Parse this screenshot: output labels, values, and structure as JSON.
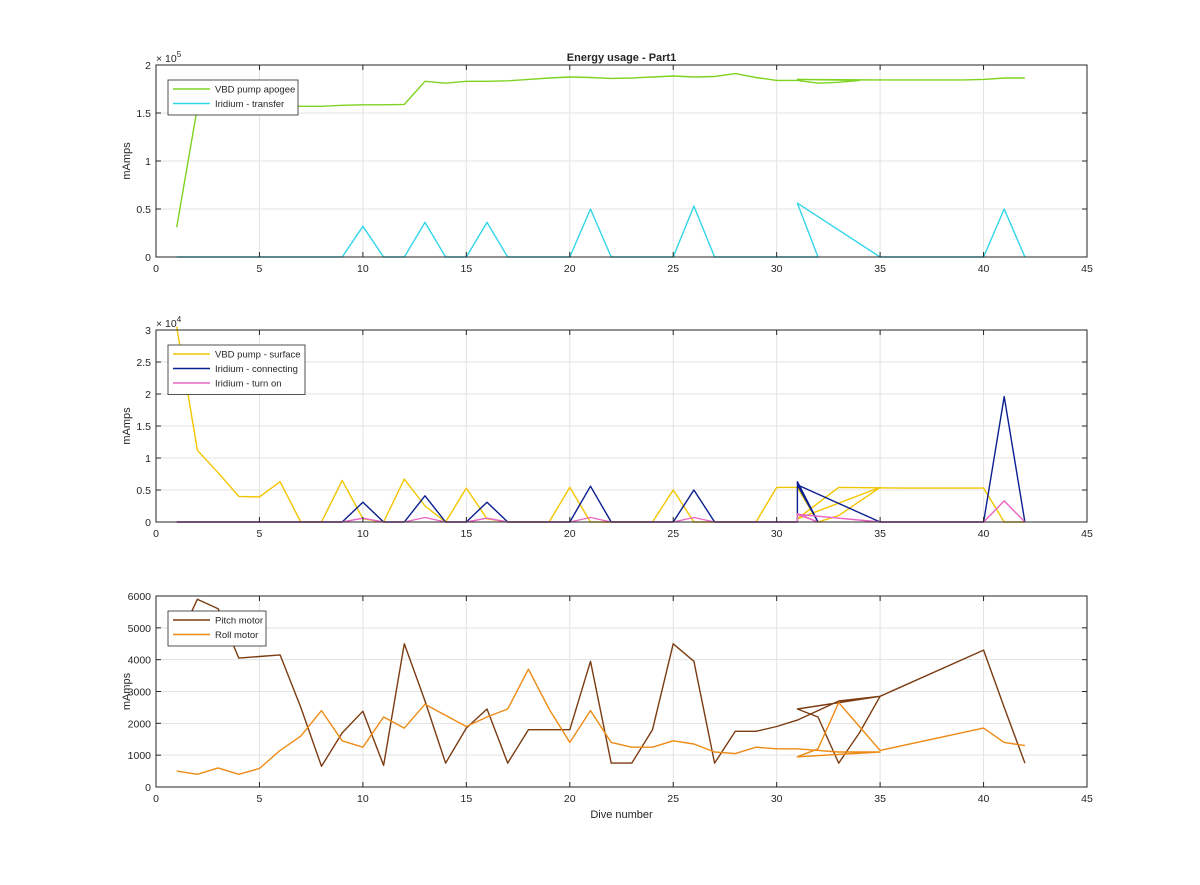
{
  "chart_data": [
    {
      "type": "line",
      "title": "Energy usage - Part1",
      "xlabel": "",
      "ylabel": "mAmps",
      "xlim": [
        0,
        45
      ],
      "ylim": [
        0,
        200000
      ],
      "x_ticks": [
        0,
        5,
        10,
        15,
        20,
        25,
        30,
        35,
        40,
        45
      ],
      "y_ticks": [
        0,
        50000,
        100000,
        150000,
        200000
      ],
      "y_tick_labels": [
        "0",
        "0.5",
        "1",
        "1.5",
        "2"
      ],
      "y_exponent_base": "× 10",
      "y_exponent_power": "5",
      "grid": true,
      "legend_position": "top-left",
      "series": [
        {
          "name": "VBD pump apogee",
          "color": "#7ed321",
          "points": [
            [
              1,
              31000
            ],
            [
              2,
              156000
            ],
            [
              3,
              157000
            ],
            [
              4,
              157000
            ],
            [
              5,
              157000
            ],
            [
              6,
              157000
            ],
            [
              7,
              157000
            ],
            [
              8,
              157000
            ],
            [
              9,
              158000
            ],
            [
              10,
              158500
            ],
            [
              11,
              158500
            ],
            [
              12,
              159000
            ],
            [
              13,
              183000
            ],
            [
              14,
              181000
            ],
            [
              15,
              183000
            ],
            [
              16,
              183000
            ],
            [
              17,
              183500
            ],
            [
              18,
              185000
            ],
            [
              19,
              186500
            ],
            [
              20,
              187500
            ],
            [
              21,
              187000
            ],
            [
              22,
              186000
            ],
            [
              23,
              186500
            ],
            [
              24,
              187500
            ],
            [
              25,
              188500
            ],
            [
              26,
              187500
            ],
            [
              27,
              188000
            ],
            [
              28,
              191000
            ],
            [
              29,
              187000
            ],
            [
              30,
              184000
            ],
            [
              31,
              184000
            ],
            [
              32,
              181000
            ],
            [
              33,
              182000
            ],
            [
              34,
              184000
            ],
            [
              31,
              185000
            ],
            [
              35,
              184500
            ],
            [
              36,
              184500
            ],
            [
              37,
              184500
            ],
            [
              38,
              184500
            ],
            [
              39,
              184500
            ],
            [
              40,
              185000
            ],
            [
              41,
              186500
            ],
            [
              42,
              186500
            ]
          ]
        },
        {
          "name": "Iridium - transfer",
          "color": "#33d6e8",
          "points": [
            [
              1,
              0
            ],
            [
              9,
              0
            ],
            [
              10,
              32000
            ],
            [
              11,
              0
            ],
            [
              12,
              0
            ],
            [
              13,
              36000
            ],
            [
              14,
              0
            ],
            [
              15,
              0
            ],
            [
              16,
              36000
            ],
            [
              17,
              0
            ],
            [
              20,
              0
            ],
            [
              21,
              50000
            ],
            [
              22,
              0
            ],
            [
              25,
              0
            ],
            [
              26,
              53000
            ],
            [
              27,
              0
            ],
            [
              31,
              0
            ],
            [
              32,
              0
            ],
            [
              31,
              56000
            ],
            [
              35,
              0
            ],
            [
              40,
              0
            ],
            [
              41,
              50000
            ],
            [
              42,
              0
            ]
          ]
        }
      ]
    },
    {
      "type": "line",
      "title": "",
      "xlabel": "",
      "ylabel": "mAmps",
      "xlim": [
        0,
        45
      ],
      "ylim": [
        0,
        30000
      ],
      "x_ticks": [
        0,
        5,
        10,
        15,
        20,
        25,
        30,
        35,
        40,
        45
      ],
      "y_ticks": [
        0,
        5000,
        10000,
        15000,
        20000,
        25000,
        30000
      ],
      "y_tick_labels": [
        "0",
        "0.5",
        "1",
        "1.5",
        "2",
        "2.5",
        "3"
      ],
      "y_exponent_base": "× 10",
      "y_exponent_power": "4",
      "grid": true,
      "legend_position": "top-left",
      "series": [
        {
          "name": "VBD pump - surface",
          "color": "#f2c500",
          "points": [
            [
              1,
              30500
            ],
            [
              2,
              11200
            ],
            [
              3,
              7700
            ],
            [
              4,
              4000
            ],
            [
              5,
              3900
            ],
            [
              6,
              6300
            ],
            [
              7,
              0
            ],
            [
              8,
              0
            ],
            [
              9,
              6500
            ],
            [
              10,
              500
            ],
            [
              11,
              0
            ],
            [
              12,
              6700
            ],
            [
              13,
              2500
            ],
            [
              14,
              0
            ],
            [
              15,
              5300
            ],
            [
              16,
              500
            ],
            [
              17,
              0
            ],
            [
              19,
              0
            ],
            [
              20,
              5400
            ],
            [
              21,
              0
            ],
            [
              24,
              0
            ],
            [
              25,
              5000
            ],
            [
              26,
              0
            ],
            [
              29,
              0
            ],
            [
              30,
              5400
            ],
            [
              31,
              5400
            ],
            [
              32,
              0
            ],
            [
              33,
              1000
            ],
            [
              35,
              5400
            ],
            [
              31,
              500
            ],
            [
              33,
              5400
            ],
            [
              36,
              5300
            ],
            [
              40,
              5300
            ],
            [
              41,
              0
            ],
            [
              42,
              0
            ]
          ]
        },
        {
          "name": "Iridium - connecting",
          "color": "#0a1f8f",
          "points": [
            [
              1,
              0
            ],
            [
              9,
              0
            ],
            [
              10,
              3100
            ],
            [
              11,
              0
            ],
            [
              12,
              0
            ],
            [
              13,
              4100
            ],
            [
              14,
              0
            ],
            [
              15,
              0
            ],
            [
              16,
              3100
            ],
            [
              17,
              0
            ],
            [
              20,
              0
            ],
            [
              21,
              5600
            ],
            [
              22,
              0
            ],
            [
              25,
              0
            ],
            [
              26,
              5000
            ],
            [
              27,
              0
            ],
            [
              31,
              0
            ],
            [
              31,
              6300
            ],
            [
              32,
              0
            ],
            [
              31,
              5800
            ],
            [
              35,
              0
            ],
            [
              40,
              0
            ],
            [
              41,
              19600
            ],
            [
              42,
              0
            ]
          ]
        },
        {
          "name": "Iridium - turn on",
          "color": "#e866c4",
          "points": [
            [
              1,
              0
            ],
            [
              9,
              0
            ],
            [
              10,
              600
            ],
            [
              11,
              0
            ],
            [
              12,
              0
            ],
            [
              13,
              700
            ],
            [
              14,
              0
            ],
            [
              15,
              0
            ],
            [
              16,
              600
            ],
            [
              17,
              0
            ],
            [
              20,
              0
            ],
            [
              21,
              700
            ],
            [
              22,
              0
            ],
            [
              25,
              0
            ],
            [
              26,
              700
            ],
            [
              27,
              0
            ],
            [
              31,
              0
            ],
            [
              31,
              1300
            ],
            [
              32,
              0
            ],
            [
              31,
              1200
            ],
            [
              35,
              0
            ],
            [
              40,
              0
            ],
            [
              41,
              3300
            ],
            [
              42,
              0
            ]
          ]
        }
      ]
    },
    {
      "type": "line",
      "title": "",
      "xlabel": "Dive number",
      "ylabel": "mAmps",
      "xlim": [
        0,
        45
      ],
      "ylim": [
        0,
        6000
      ],
      "x_ticks": [
        0,
        5,
        10,
        15,
        20,
        25,
        30,
        35,
        40,
        45
      ],
      "y_ticks": [
        0,
        1000,
        2000,
        3000,
        4000,
        5000,
        6000
      ],
      "y_tick_labels": [
        "0",
        "1000",
        "2000",
        "3000",
        "4000",
        "5000",
        "6000"
      ],
      "grid": true,
      "legend_position": "top-left",
      "series": [
        {
          "name": "Pitch motor",
          "color": "#7b3c12",
          "points": [
            [
              1,
              4500
            ],
            [
              2,
              5900
            ],
            [
              3,
              5600
            ],
            [
              4,
              4050
            ],
            [
              5,
              4100
            ],
            [
              6,
              4150
            ],
            [
              7,
              2500
            ],
            [
              8,
              650
            ],
            [
              9,
              1700
            ],
            [
              10,
              2380
            ],
            [
              11,
              680
            ],
            [
              12,
              4500
            ],
            [
              13,
              2700
            ],
            [
              14,
              750
            ],
            [
              15,
              1850
            ],
            [
              16,
              2450
            ],
            [
              17,
              750
            ],
            [
              18,
              1800
            ],
            [
              19,
              1800
            ],
            [
              20,
              1800
            ],
            [
              21,
              3950
            ],
            [
              22,
              750
            ],
            [
              23,
              750
            ],
            [
              24,
              1800
            ],
            [
              25,
              4500
            ],
            [
              26,
              3950
            ],
            [
              27,
              750
            ],
            [
              28,
              1750
            ],
            [
              29,
              1750
            ],
            [
              30,
              1900
            ],
            [
              31,
              2100
            ],
            [
              32,
              2400
            ],
            [
              33,
              2700
            ],
            [
              35,
              2850
            ],
            [
              31,
              2450
            ],
            [
              32,
              2200
            ],
            [
              33,
              750
            ],
            [
              34,
              1700
            ],
            [
              35,
              2850
            ],
            [
              40,
              4300
            ],
            [
              41,
              2500
            ],
            [
              42,
              750
            ]
          ]
        },
        {
          "name": "Roll motor",
          "color": "#ee8b15",
          "points": [
            [
              1,
              500
            ],
            [
              2,
              400
            ],
            [
              3,
              600
            ],
            [
              4,
              400
            ],
            [
              5,
              580
            ],
            [
              6,
              1150
            ],
            [
              7,
              1600
            ],
            [
              8,
              2400
            ],
            [
              9,
              1450
            ],
            [
              10,
              1250
            ],
            [
              11,
              2200
            ],
            [
              12,
              1850
            ],
            [
              13,
              2600
            ],
            [
              14,
              2250
            ],
            [
              15,
              1900
            ],
            [
              16,
              2200
            ],
            [
              17,
              2450
            ],
            [
              18,
              3700
            ],
            [
              19,
              2450
            ],
            [
              20,
              1400
            ],
            [
              21,
              2400
            ],
            [
              22,
              1400
            ],
            [
              23,
              1250
            ],
            [
              24,
              1250
            ],
            [
              25,
              1450
            ],
            [
              26,
              1350
            ],
            [
              27,
              1100
            ],
            [
              28,
              1050
            ],
            [
              29,
              1250
            ],
            [
              30,
              1200
            ],
            [
              31,
              1200
            ],
            [
              32,
              1150
            ],
            [
              33,
              1100
            ],
            [
              34,
              1100
            ],
            [
              35,
              1100
            ],
            [
              31,
              950
            ],
            [
              32,
              1200
            ],
            [
              33,
              2650
            ],
            [
              34,
              1900
            ],
            [
              35,
              1150
            ],
            [
              40,
              1850
            ],
            [
              41,
              1400
            ],
            [
              42,
              1300
            ]
          ]
        }
      ]
    }
  ]
}
